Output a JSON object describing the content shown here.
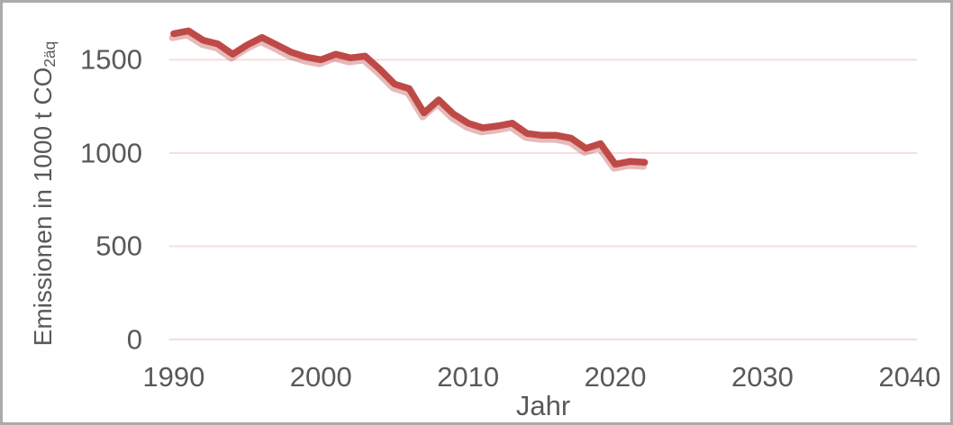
{
  "chart_data": {
    "type": "line",
    "title": "",
    "xlabel": "Jahr",
    "ylabel": "Emissionen in 1000 t CO2äq",
    "ylabel_base": "Emissionen in 1000 t CO",
    "ylabel_subscript": "2äq",
    "x": [
      1990,
      1991,
      1992,
      1993,
      1994,
      1995,
      1996,
      1997,
      1998,
      1999,
      2000,
      2001,
      2002,
      2003,
      2004,
      2005,
      2006,
      2007,
      2008,
      2009,
      2010,
      2011,
      2012,
      2013,
      2014,
      2015,
      2016,
      2017,
      2018,
      2019,
      2020,
      2021,
      2022
    ],
    "series": [
      {
        "name": "Emissionen in 1000 t CO2äq",
        "values": [
          1640,
          1655,
          1605,
          1585,
          1530,
          1580,
          1620,
          1580,
          1540,
          1515,
          1500,
          1530,
          1510,
          1520,
          1450,
          1370,
          1345,
          1215,
          1285,
          1210,
          1160,
          1135,
          1145,
          1160,
          1105,
          1095,
          1095,
          1080,
          1025,
          1050,
          940,
          955,
          950
        ]
      }
    ],
    "xlim": [
      1989.7,
      2040.5
    ],
    "ylim": [
      0,
      1700
    ],
    "x_ticks": [
      "1990",
      "2000",
      "2010",
      "2020",
      "2030",
      "2040"
    ],
    "x_tick_values": [
      1990,
      2000,
      2010,
      2020,
      2030,
      2040
    ],
    "y_ticks": [
      "0",
      "500",
      "1000",
      "1500"
    ],
    "y_tick_values": [
      0,
      500,
      1000,
      1500
    ],
    "grid": "horizontal",
    "legend": "none",
    "colors": {
      "line": "#be4a47",
      "line_shadow": "#be4a47",
      "gridline": "#fadcdb",
      "axis_text": "#595959",
      "frame_border": "#ababab",
      "background": "#ffffff"
    }
  }
}
